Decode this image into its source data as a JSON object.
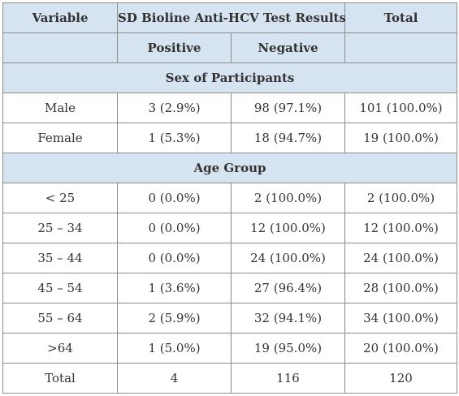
{
  "header": {
    "variable": "Variable",
    "test_results": "SD Bioline Anti-HCV Test Results",
    "total": "Total",
    "positive": "Positive",
    "negative": "Negative"
  },
  "sections": [
    {
      "title": "Sex of Participants",
      "rows": [
        {
          "variable": "Male",
          "positive": "3 (2.9%)",
          "negative": "98 (97.1%)",
          "total": "101 (100.0%)"
        },
        {
          "variable": "Female",
          "positive": "1 (5.3%)",
          "negative": "18 (94.7%)",
          "total": "19 (100.0%)"
        }
      ]
    },
    {
      "title": "Age Group",
      "rows": [
        {
          "variable": "< 25",
          "positive": "0 (0.0%)",
          "negative": "2 (100.0%)",
          "total": "2 (100.0%)"
        },
        {
          "variable": "25 – 34",
          "positive": "0 (0.0%)",
          "negative": "12 (100.0%)",
          "total": "12 (100.0%)"
        },
        {
          "variable": "35 – 44",
          "positive": "0 (0.0%)",
          "negative": "24 (100.0%)",
          "total": "24 (100.0%)"
        },
        {
          "variable": "45 – 54",
          "positive": "1 (3.6%)",
          "negative": "27 (96.4%)",
          "total": "28 (100.0%)"
        },
        {
          "variable": "55 – 64",
          "positive": "2 (5.9%)",
          "negative": "32 (94.1%)",
          "total": "34 (100.0%)"
        },
        {
          "variable": ">64",
          "positive": "1 (5.0%)",
          "negative": "19 (95.0%)",
          "total": "20 (100.0%)"
        }
      ]
    }
  ],
  "totals": {
    "variable": "Total",
    "positive": "4",
    "negative": "116",
    "total": "120"
  },
  "colors": {
    "header_bg": "#d6e4f2",
    "border": "#8c8c8c",
    "text": "#333333"
  }
}
